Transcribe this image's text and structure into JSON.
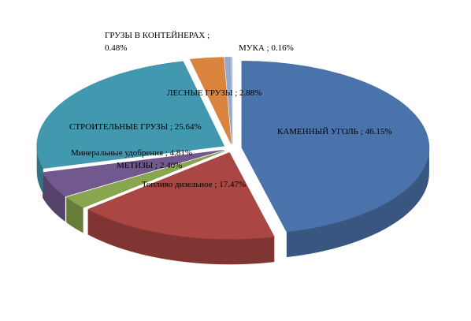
{
  "chart_data": {
    "type": "pie",
    "categories": [
      "КАМЕННЫЙ УГОЛЬ",
      "Топливо дизельное",
      "МЕТИЗЫ",
      "Минеральные удобрения",
      "СТРОИТЕЛЬНЫЕ ГРУЗЫ",
      "ЛЕСНЫЕ ГРУЗЫ",
      "ГРУЗЫ В КОНТЕЙНЕРАХ",
      "МУКА"
    ],
    "values": [
      46.15,
      17.47,
      2.4,
      4.81,
      25.64,
      2.88,
      0.48,
      0.16
    ],
    "value_labels": [
      "46.15%",
      "17.47%",
      "2.40%",
      "4.81%",
      "25.64%",
      "2.88%",
      "0.48%",
      "0.16%"
    ],
    "label_separator": " ; ",
    "colors": [
      "#4a72ab",
      "#aa4643",
      "#89a54e",
      "#71588f",
      "#4198af",
      "#db843d",
      "#93a9cf",
      "#b9c7de"
    ]
  }
}
